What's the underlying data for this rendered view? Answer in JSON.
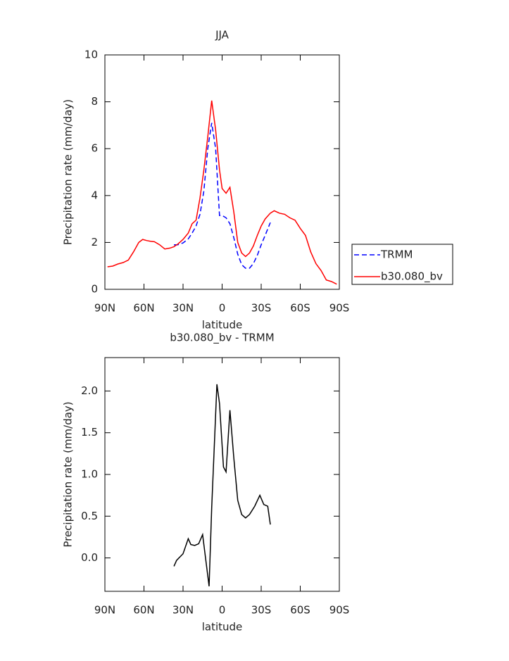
{
  "chart_data": [
    {
      "type": "line",
      "title": "JJA",
      "xlabel": "latitude",
      "ylabel": "Precipitation rate (mm/day)",
      "x": [
        88,
        84,
        80,
        76,
        72,
        68,
        64,
        61,
        58,
        55,
        52,
        48,
        44,
        40,
        37,
        34,
        30,
        26,
        23,
        20,
        17,
        14,
        11,
        8,
        5,
        2,
        0,
        -3,
        -6,
        -9,
        -12,
        -15,
        -18,
        -21,
        -24,
        -27,
        -30,
        -33,
        -37,
        -40,
        -44,
        -48,
        -52,
        -56,
        -60,
        -64,
        -68,
        -72,
        -76,
        -80,
        -84,
        -88
      ],
      "xlim": [
        90,
        -90
      ],
      "xticks": [
        {
          "value": 90,
          "label": "90N"
        },
        {
          "value": 60,
          "label": "60N"
        },
        {
          "value": 30,
          "label": "30N"
        },
        0,
        {
          "value": -30,
          "label": "30S"
        },
        {
          "value": -60,
          "label": "60S"
        },
        {
          "value": -90,
          "label": "90S"
        }
      ],
      "ylim": [
        0,
        10
      ],
      "yticks": [
        0,
        2,
        4,
        6,
        8,
        10
      ],
      "legend": "right",
      "series": [
        {
          "name": "TRMM",
          "color": "#0000ff",
          "dash": "dashed",
          "values": [
            null,
            null,
            null,
            null,
            null,
            null,
            null,
            null,
            null,
            null,
            null,
            null,
            null,
            null,
            1.9,
            1.9,
            1.98,
            2.15,
            2.4,
            2.7,
            3.2,
            4.2,
            6.0,
            7.1,
            6.0,
            3.15,
            3.15,
            3.05,
            2.8,
            2.2,
            1.5,
            1.05,
            0.9,
            0.9,
            1.1,
            1.45,
            1.9,
            2.3,
            2.85,
            null,
            null,
            null,
            null,
            null,
            null,
            null,
            null,
            null,
            null,
            null,
            null,
            null
          ]
        },
        {
          "name": "b30.080_bv",
          "color": "#ff0000",
          "dash": "solid",
          "values": [
            0.96,
            0.99,
            1.08,
            1.14,
            1.25,
            1.6,
            2.0,
            2.13,
            2.08,
            2.05,
            2.03,
            1.9,
            1.72,
            1.76,
            1.82,
            1.93,
            2.13,
            2.4,
            2.8,
            2.95,
            3.9,
            5.1,
            6.5,
            8.05,
            6.8,
            5.1,
            4.3,
            4.1,
            4.35,
            3.3,
            2.0,
            1.55,
            1.4,
            1.55,
            1.85,
            2.3,
            2.7,
            3.0,
            3.25,
            3.35,
            3.25,
            3.2,
            3.05,
            2.95,
            2.6,
            2.3,
            1.6,
            1.1,
            0.8,
            0.4,
            0.33,
            0.22
          ]
        }
      ]
    },
    {
      "type": "line",
      "title": "b30.080_bv - TRMM",
      "xlabel": "latitude",
      "ylabel": "Precipitation rate (mm/day)",
      "x": [
        37,
        35,
        30,
        26,
        24,
        21,
        18,
        15,
        10,
        8,
        4,
        2,
        -1,
        -3,
        -6,
        -9,
        -12,
        -15,
        -18,
        -21,
        -25,
        -29,
        -32,
        -35,
        -37
      ],
      "values": [
        -0.1,
        -0.03,
        0.05,
        0.23,
        0.16,
        0.15,
        0.17,
        0.28,
        -0.34,
        0.6,
        2.08,
        1.85,
        1.09,
        1.03,
        1.77,
        1.2,
        0.69,
        0.52,
        0.48,
        0.52,
        0.62,
        0.75,
        0.64,
        0.62,
        0.4
      ],
      "color": "#000000",
      "xlim": [
        90,
        -90
      ],
      "xticks": [
        {
          "value": 90,
          "label": "90N"
        },
        {
          "value": 60,
          "label": "60N"
        },
        {
          "value": 30,
          "label": "30N"
        },
        0,
        {
          "value": -30,
          "label": "30S"
        },
        {
          "value": -60,
          "label": "60S"
        },
        {
          "value": -90,
          "label": "90S"
        }
      ],
      "ylim": [
        -0.4,
        2.4
      ],
      "yticks": [
        {
          "value": 0,
          "label": "0.0"
        },
        {
          "value": 0.5,
          "label": "0.5"
        },
        {
          "value": 1,
          "label": "1.0"
        },
        {
          "value": 1.5,
          "label": "1.5"
        },
        {
          "value": 2,
          "label": "2.0"
        }
      ]
    }
  ]
}
